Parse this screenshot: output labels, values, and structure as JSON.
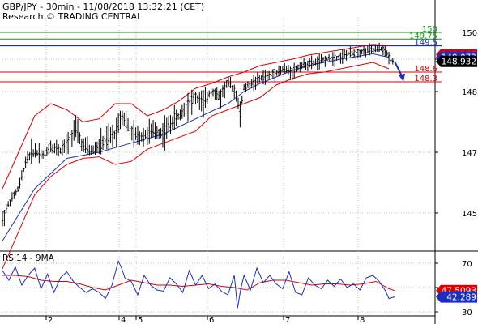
{
  "header": {
    "title": "GBP/JPY - 30min - 11/08/2018 13:32:21 (CET)",
    "source": "Research © TRADING CENTRAL"
  },
  "colors": {
    "price": "#000000",
    "bands": "#dd0000",
    "ma": "#1a2fbf",
    "green_level": "#119911",
    "blue_level": "#1a2fbf",
    "red_level": "#dd0000",
    "grid": "#c0c0c0",
    "arrow": "#1a2fbf",
    "rsi": "#1a2fbf",
    "rsi_ma": "#dd0000"
  },
  "chart_data": [
    {
      "type": "line",
      "symbol": "GBP/JPY",
      "timeframe": "30min",
      "y_ticks": [
        "150",
        "149",
        "148",
        "147",
        "145"
      ],
      "x_ticks": [
        "2",
        "4",
        "5",
        "6",
        "7",
        "8"
      ],
      "levels": [
        {
          "label": "150",
          "value": 150.0,
          "color": "green"
        },
        {
          "label": "149.75",
          "value": 149.75,
          "color": "green"
        },
        {
          "label": "149.5",
          "value": 149.5,
          "color": "blue"
        },
        {
          "label": "148.6",
          "value": 148.6,
          "color": "red"
        },
        {
          "label": "148.3",
          "value": 148.3,
          "color": "red"
        }
      ],
      "badges": [
        {
          "label": "149.167",
          "value": 149.167,
          "color": "red"
        },
        {
          "label": "149.072",
          "value": 149.072,
          "color": "blue"
        },
        {
          "label": "148.932",
          "value": 148.932,
          "color": "black"
        }
      ],
      "grid": true,
      "series": [
        {
          "name": "price",
          "x": [
            0,
            10,
            20,
            30,
            40,
            50,
            60,
            70,
            80,
            90,
            100,
            110,
            120,
            130,
            140,
            147,
            150,
            160,
            170,
            180,
            190,
            200,
            210,
            220,
            230,
            240,
            250,
            260,
            270,
            280,
            290,
            295,
            300,
            310,
            320,
            330,
            340,
            350,
            360,
            370,
            380,
            390,
            400,
            410,
            420,
            430,
            440,
            450,
            460,
            470,
            475,
            480,
            487
          ],
          "y": [
            144.9,
            145.4,
            145.8,
            146.8,
            147.0,
            146.9,
            147.1,
            147.0,
            147.1,
            147.4,
            147.1,
            147.0,
            147.1,
            147.2,
            147.3,
            147.6,
            147.6,
            147.3,
            147.25,
            147.3,
            147.35,
            147.3,
            147.5,
            147.6,
            147.8,
            147.9,
            147.8,
            148.05,
            147.9,
            148.3,
            148.0,
            147.6,
            148.1,
            148.25,
            148.4,
            148.5,
            148.6,
            148.7,
            148.6,
            148.8,
            148.85,
            148.9,
            149.0,
            149.05,
            149.1,
            149.2,
            149.25,
            149.3,
            149.35,
            149.4,
            149.3,
            149.1,
            148.93
          ]
        },
        {
          "name": "moving average",
          "x": [
            0,
            40,
            80,
            120,
            160,
            200,
            240,
            280,
            300,
            320,
            340,
            360,
            380,
            400,
            420,
            440,
            460,
            480
          ],
          "y": [
            144.6,
            145.8,
            146.8,
            147.0,
            147.15,
            147.3,
            147.55,
            147.8,
            148.0,
            148.25,
            148.45,
            148.65,
            148.8,
            148.9,
            149.0,
            149.1,
            149.2,
            149.07
          ]
        },
        {
          "name": "upper band",
          "x": [
            0,
            40,
            60,
            80,
            100,
            120,
            140,
            160,
            180,
            200,
            220,
            240,
            260,
            280,
            300,
            320,
            340,
            360,
            380,
            400,
            420,
            440,
            460,
            480
          ],
          "y": [
            145.8,
            147.6,
            147.8,
            147.7,
            147.5,
            147.55,
            147.8,
            147.8,
            147.6,
            147.7,
            147.85,
            148.1,
            148.25,
            148.45,
            148.6,
            148.8,
            148.9,
            149.0,
            149.15,
            149.25,
            149.35,
            149.45,
            149.55,
            149.5
          ]
        },
        {
          "name": "lower band",
          "x": [
            0,
            40,
            60,
            80,
            100,
            120,
            140,
            160,
            180,
            200,
            220,
            240,
            260,
            280,
            300,
            320,
            340,
            360,
            380,
            400,
            420,
            440,
            460,
            480
          ],
          "y": [
            144.2,
            145.6,
            146.2,
            146.6,
            146.8,
            146.85,
            146.6,
            146.7,
            147.05,
            147.15,
            147.25,
            147.35,
            147.6,
            147.7,
            147.8,
            147.9,
            148.2,
            148.4,
            148.55,
            148.6,
            148.7,
            148.8,
            148.9,
            148.7
          ]
        }
      ]
    },
    {
      "type": "line",
      "title": "RSI14 - 9MA",
      "y_ticks": [
        "70",
        "50",
        "30"
      ],
      "levels": [
        70,
        50,
        30
      ],
      "badges": [
        {
          "label": "47.5093",
          "value": 47.5093,
          "color": "red"
        },
        {
          "label": "42.289",
          "value": 42.289,
          "color": "blue"
        }
      ],
      "series": [
        {
          "name": "RSI",
          "x": [
            0,
            8,
            16,
            24,
            32,
            40,
            48,
            56,
            64,
            72,
            80,
            88,
            96,
            104,
            112,
            120,
            128,
            136,
            144,
            148,
            152,
            160,
            168,
            176,
            184,
            192,
            200,
            208,
            216,
            224,
            232,
            240,
            248,
            256,
            264,
            272,
            280,
            288,
            292,
            296,
            300,
            308,
            316,
            324,
            332,
            340,
            348,
            356,
            364,
            372,
            380,
            388,
            396,
            404,
            412,
            420,
            428,
            436,
            444,
            452,
            460,
            468,
            476,
            480,
            487
          ],
          "y": [
            64,
            56,
            67,
            52,
            60,
            66,
            49,
            61,
            46,
            58,
            63,
            55,
            50,
            46,
            49,
            46,
            41,
            52,
            72,
            66,
            58,
            55,
            44,
            60,
            52,
            48,
            47,
            58,
            53,
            46,
            64,
            52,
            60,
            49,
            53,
            47,
            44,
            60,
            33,
            49,
            60,
            48,
            66,
            54,
            60,
            53,
            49,
            63,
            46,
            44,
            58,
            52,
            49,
            56,
            51,
            57,
            50,
            53,
            48,
            58,
            60,
            55,
            47,
            41,
            42.289
          ]
        },
        {
          "name": "RSI MA",
          "x": [
            0,
            16,
            32,
            48,
            64,
            80,
            96,
            112,
            128,
            144,
            160,
            176,
            192,
            208,
            224,
            240,
            256,
            272,
            288,
            304,
            320,
            336,
            352,
            368,
            384,
            400,
            416,
            432,
            448,
            464,
            480,
            487
          ],
          "y": [
            60,
            60,
            59,
            56,
            55,
            55,
            53,
            50,
            48,
            52,
            56,
            54,
            52,
            52,
            51,
            52,
            53,
            51,
            50,
            48,
            54,
            56,
            56,
            54,
            52,
            53,
            53,
            52,
            53,
            55,
            49,
            47.5093
          ]
        }
      ]
    }
  ]
}
